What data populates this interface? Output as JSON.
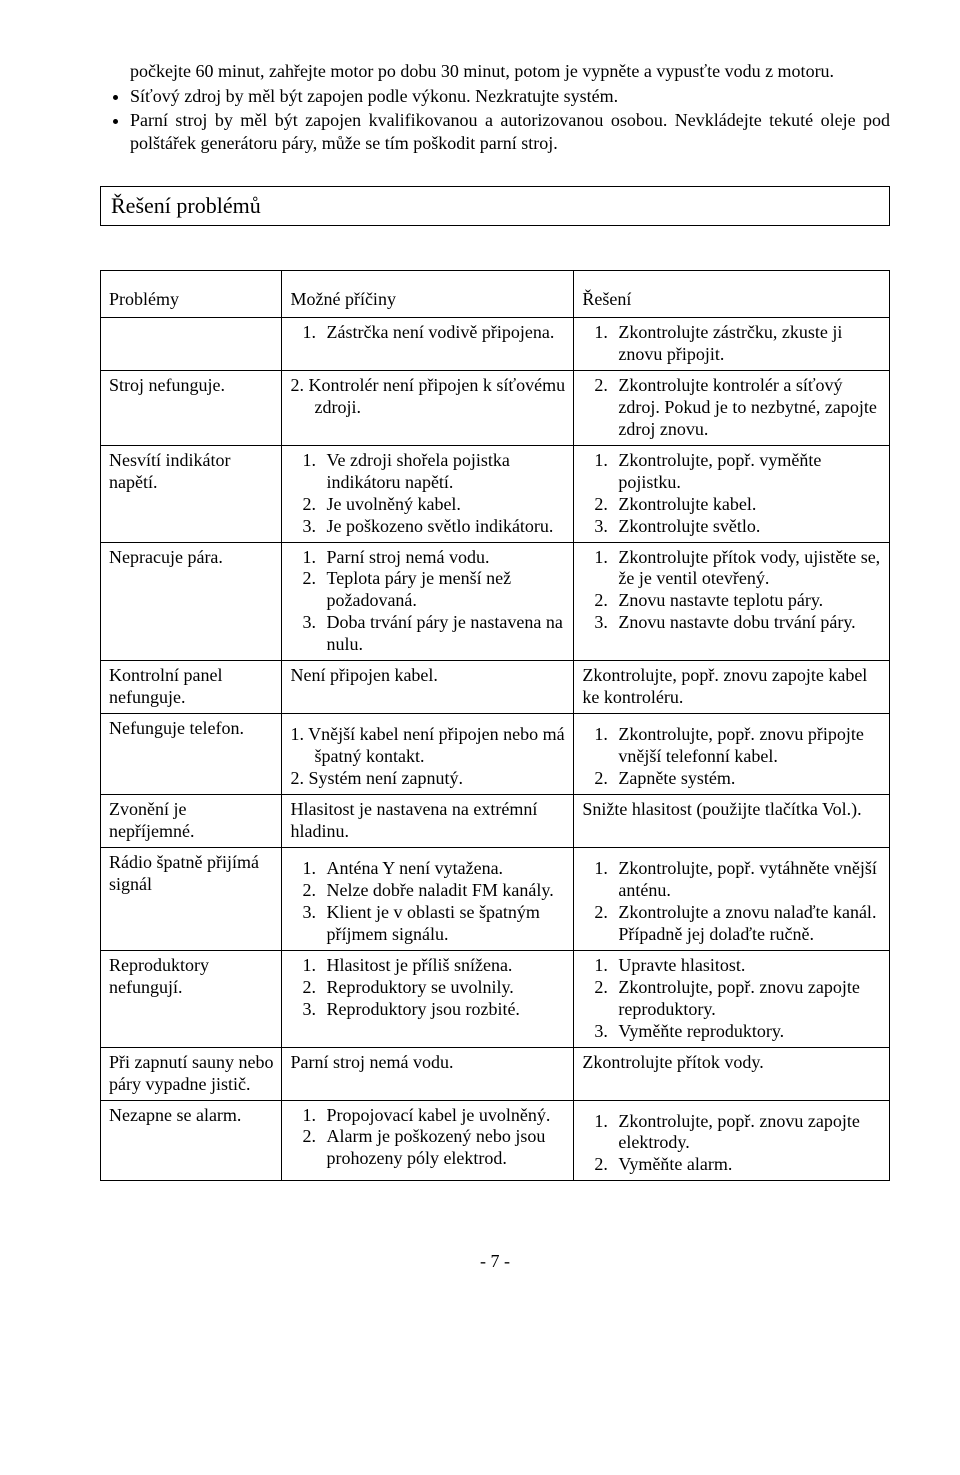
{
  "intro": {
    "para1": "počkejte 60 minut, zahřejte motor po dobu 30 minut, potom je vypněte a vypusťte vodu z motoru.",
    "bullets": [
      "Síťový zdroj by měl být zapojen podle výkonu. Nezkratujte systém.",
      "Parní stroj by měl být zapojen kvalifikovanou a autorizovanou osobou. Nevkládejte tekuté oleje pod polštářek generátoru páry, může se tím poškodit parní stroj."
    ]
  },
  "section_title": "Řešení problémů",
  "headers": {
    "p": "Problémy",
    "c": "Možné příčiny",
    "s": "Řešení"
  },
  "rows": [
    {
      "p": "",
      "c": {
        "type": "ol-wide",
        "items": [
          "Zástrčka není vodivě připojena."
        ]
      },
      "s": {
        "type": "ol-wide",
        "items": [
          "Zkontrolujte zástrčku, zkuste ji znovu připojit."
        ]
      }
    },
    {
      "p": "Stroj nefunguje.",
      "c": {
        "type": "numpara",
        "items": [
          "2. Kontrolér není připojen k síťovému zdroji."
        ]
      },
      "s": {
        "type": "ol-wide",
        "start": 2,
        "items": [
          "Zkontrolujte kontrolér a síťový zdroj. Pokud je to nezbytné, zapojte zdroj znovu."
        ]
      }
    },
    {
      "p": "Nesvítí indikátor napětí.",
      "c": {
        "type": "ol-wide",
        "items": [
          "Ve zdroji shořela pojistka indikátoru napětí.",
          "Je uvolněný kabel.",
          "Je poškozeno světlo indikátoru."
        ]
      },
      "s": {
        "type": "ol-wide",
        "items": [
          "Zkontrolujte, popř. vyměňte pojistku.",
          "Zkontrolujte kabel.",
          "Zkontrolujte světlo."
        ]
      }
    },
    {
      "p": "Nepracuje pára.",
      "c": {
        "type": "ol-wide",
        "items": [
          "Parní stroj nemá vodu.",
          "Teplota páry je menší než požadovaná.",
          "Doba trvání páry je nastavena na nulu."
        ]
      },
      "s": {
        "type": "ol-wide",
        "items": [
          "Zkontrolujte přítok vody, ujistěte se, že je ventil otevřený.",
          "Znovu nastavte teplotu páry.",
          "Znovu nastavte dobu trvání páry."
        ]
      }
    },
    {
      "p": "Kontrolní panel nefunguje.",
      "c": {
        "type": "plain",
        "text": "Není připojen kabel."
      },
      "s": {
        "type": "plain",
        "text": "Zkontrolujte, popř. znovu zapojte kabel ke kontroléru."
      }
    },
    {
      "p": "Nefunguje telefon.",
      "c": {
        "type": "numpara",
        "spaced": true,
        "items": [
          "1. Vnější kabel není připojen nebo má špatný kontakt.",
          "2. Systém není zapnutý."
        ]
      },
      "s": {
        "type": "ol-wide",
        "spaced": true,
        "items": [
          "Zkontrolujte, popř. znovu připojte vnější telefonní kabel.",
          "Zapněte systém."
        ]
      }
    },
    {
      "p": "Zvonění je nepříjemné.",
      "c": {
        "type": "plain",
        "text": "Hlasitost je nastavena na extrémní hladinu."
      },
      "s": {
        "type": "plain",
        "text": "Snižte hlasitost (použijte tlačítka Vol.)."
      }
    },
    {
      "p": "Rádio špatně přijímá signál",
      "c": {
        "type": "ol-wide",
        "spaced": true,
        "items": [
          "Anténa Y není vytažena.",
          "Nelze dobře naladit FM kanály.",
          "Klient je v oblasti se špatným příjmem signálu."
        ]
      },
      "s": {
        "type": "ol-wide",
        "spaced": true,
        "items": [
          "Zkontrolujte, popř. vytáhněte vnější anténu.",
          "Zkontrolujte a znovu nalaďte kanál. Případně jej dolaďte ručně."
        ]
      }
    },
    {
      "p": "Reproduktory nefungují.",
      "c": {
        "type": "ol-wide",
        "items": [
          "Hlasitost je příliš snížena.",
          "Reproduktory se uvolnily.",
          "Reproduktory jsou rozbité."
        ]
      },
      "s": {
        "type": "ol-wide",
        "items": [
          "Upravte hlasitost.",
          "Zkontrolujte, popř. znovu zapojte reproduktory.",
          "Vyměňte reproduktory."
        ]
      }
    },
    {
      "p": "Při zapnutí sauny nebo páry vypadne jistič.",
      "c": {
        "type": "plain",
        "text": "Parní stroj nemá vodu."
      },
      "s": {
        "type": "plain",
        "text": "Zkontrolujte přítok vody."
      }
    },
    {
      "p": "Nezapne se alarm.",
      "c": {
        "type": "ol-wide",
        "items": [
          "Propojovací kabel je uvolněný.",
          "Alarm je poškozený nebo jsou prohozeny póly elektrod."
        ]
      },
      "s": {
        "type": "ol-wide",
        "spaced": true,
        "items": [
          "Zkontrolujte, popř. znovu zapojte elektrody.",
          "Vyměňte alarm."
        ]
      }
    }
  ],
  "footer": "- 7 -"
}
